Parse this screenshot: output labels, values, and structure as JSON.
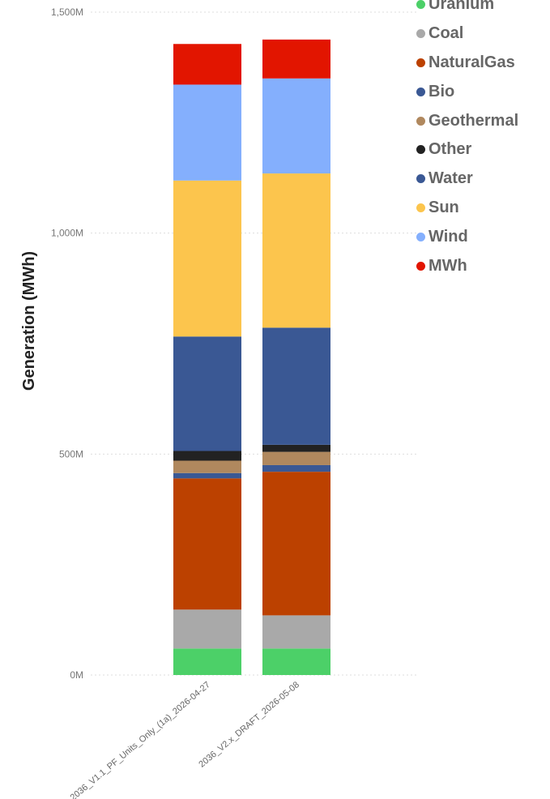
{
  "chart_data": {
    "type": "bar",
    "stacked": true,
    "ylabel": "Generation (MWh)",
    "xlabel": "",
    "ylim": [
      0,
      1500
    ],
    "y_unit_suffix": "M",
    "yticks": [
      "0M",
      "500M",
      "1,000M",
      "1,500M"
    ],
    "ytick_values": [
      0,
      500,
      1000,
      1500
    ],
    "grid": true,
    "legend_position": "right",
    "categories": [
      "2036_V1.1_PF_Units_Only_(1a)_2026-04-27",
      "2036_V2.x_DRAFT_2026-05-08"
    ],
    "series": [
      {
        "name": "Uranium",
        "color": "#4CD068",
        "values": [
          60,
          60
        ]
      },
      {
        "name": "Coal",
        "color": "#A9A9A9",
        "values": [
          88,
          75
        ]
      },
      {
        "name": "NaturalGas",
        "color": "#BC4100",
        "values": [
          297,
          325
        ]
      },
      {
        "name": "Bio",
        "color": "#3A5894",
        "values": [
          0,
          0
        ]
      },
      {
        "name": "Geothermal",
        "color": "#B0885E",
        "values": [
          28,
          30
        ]
      },
      {
        "name": "Other",
        "color": "#222222",
        "values": [
          22,
          16
        ]
      },
      {
        "name": "Water",
        "color": "#3A5894",
        "values": [
          12,
          15
        ]
      },
      {
        "name": "Sun",
        "color": "#FCC54D",
        "values": [
          353,
          349
        ]
      },
      {
        "name": "Wind",
        "color": "#84AFFD",
        "values": [
          217,
          215
        ]
      },
      {
        "name": "MWh",
        "color": "#E21500",
        "values": [
          92,
          88
        ]
      }
    ],
    "hidden_bottom_segment": "Water",
    "bar_segment_order_bottom_to_top": [
      "Uranium",
      "Coal",
      "NaturalGas",
      "Water",
      "Geothermal",
      "Other",
      "WaterLarge",
      "Sun",
      "Wind",
      "MWh"
    ],
    "large_water": {
      "name": "Water",
      "color": "#3A5894",
      "values": [
        259,
        265
      ]
    }
  },
  "legend": [
    {
      "label": "Uranium",
      "color": "#4CD068"
    },
    {
      "label": "Coal",
      "color": "#A9A9A9"
    },
    {
      "label": "NaturalGas",
      "color": "#BC4100"
    },
    {
      "label": "Bio",
      "color": "#3A5894"
    },
    {
      "label": "Geothermal",
      "color": "#B0885E"
    },
    {
      "label": "Other",
      "color": "#222222"
    },
    {
      "label": "Water",
      "color": "#3A5894"
    },
    {
      "label": "Sun",
      "color": "#FCC54D"
    },
    {
      "label": "Wind",
      "color": "#84AFFD"
    },
    {
      "label": "MWh",
      "color": "#E21500"
    }
  ]
}
